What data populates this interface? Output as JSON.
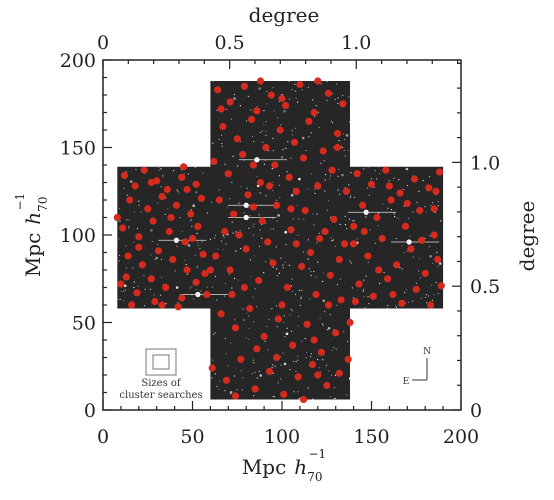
{
  "chart_data": {
    "type": "scatter",
    "title": "",
    "xlabel_main": "Mpc",
    "xlabel_h": "h",
    "xlabel_sub": "70",
    "xlabel_sup": "−1",
    "ylabel_main": "Mpc",
    "ylabel_h": "h",
    "ylabel_sub": "70",
    "ylabel_sup": "−1",
    "top_axis_label": "degree",
    "right_axis_label": "degree",
    "xlim": [
      0,
      200
    ],
    "ylim": [
      0,
      200
    ],
    "x_ticks": [
      "0",
      "50",
      "100",
      "150",
      "200"
    ],
    "y_ticks": [
      "0",
      "50",
      "100",
      "150",
      "200"
    ],
    "top_ticks": [
      "0",
      "0.5",
      "1.0"
    ],
    "right_ticks": [
      "0",
      "0.5",
      "1.0"
    ],
    "degree_to_mpc": 141.5,
    "field_footprint": [
      {
        "x": [
          60,
          138
        ],
        "y": [
          6,
          188
        ]
      },
      {
        "x": [
          8,
          190
        ],
        "y": [
          58,
          139
        ]
      }
    ],
    "legend_box_caption_line1": "Sizes of",
    "legend_box_caption_line2": "cluster searches",
    "compass_north": "N",
    "compass_east": "E",
    "series": [
      {
        "marker_color": "#d42b1e",
        "points": [
          [
            12,
            134
          ],
          [
            18,
            128
          ],
          [
            23,
            137
          ],
          [
            30,
            131
          ],
          [
            36,
            126
          ],
          [
            44,
            133
          ],
          [
            52,
            129
          ],
          [
            15,
            120
          ],
          [
            25,
            115
          ],
          [
            33,
            122
          ],
          [
            41,
            117
          ],
          [
            49,
            112
          ],
          [
            55,
            121
          ],
          [
            11,
            104
          ],
          [
            20,
            99
          ],
          [
            28,
            108
          ],
          [
            37,
            102
          ],
          [
            46,
            96
          ],
          [
            53,
            105
          ],
          [
            14,
            88
          ],
          [
            22,
            83
          ],
          [
            31,
            91
          ],
          [
            39,
            86
          ],
          [
            47,
            80
          ],
          [
            56,
            89
          ],
          [
            10,
            72
          ],
          [
            19,
            67
          ],
          [
            27,
            75
          ],
          [
            35,
            70
          ],
          [
            44,
            64
          ],
          [
            52,
            73
          ],
          [
            16,
            60
          ],
          [
            29,
            62
          ],
          [
            42,
            59
          ],
          [
            58,
            66
          ],
          [
            64,
            183
          ],
          [
            71,
            176
          ],
          [
            79,
            185
          ],
          [
            86,
            171
          ],
          [
            94,
            180
          ],
          [
            102,
            174
          ],
          [
            110,
            186
          ],
          [
            118,
            170
          ],
          [
            126,
            181
          ],
          [
            134,
            175
          ],
          [
            67,
            162
          ],
          [
            75,
            155
          ],
          [
            83,
            166
          ],
          [
            91,
            150
          ],
          [
            99,
            160
          ],
          [
            107,
            153
          ],
          [
            115,
            165
          ],
          [
            123,
            148
          ],
          [
            131,
            158
          ],
          [
            62,
            142
          ],
          [
            70,
            135
          ],
          [
            78,
            146
          ],
          [
            88,
            130
          ],
          [
            96,
            140
          ],
          [
            104,
            133
          ],
          [
            112,
            144
          ],
          [
            120,
            128
          ],
          [
            128,
            137
          ],
          [
            136,
            125
          ],
          [
            65,
            120
          ],
          [
            73,
            112
          ],
          [
            81,
            123
          ],
          [
            89,
            108
          ],
          [
            97,
            117
          ],
          [
            105,
            103
          ],
          [
            113,
            114
          ],
          [
            121,
            98
          ],
          [
            129,
            109
          ],
          [
            135,
            95
          ],
          [
            63,
            88
          ],
          [
            71,
            80
          ],
          [
            80,
            92
          ],
          [
            87,
            74
          ],
          [
            95,
            84
          ],
          [
            103,
            70
          ],
          [
            111,
            82
          ],
          [
            119,
            66
          ],
          [
            127,
            77
          ],
          [
            133,
            63
          ],
          [
            66,
            55
          ],
          [
            74,
            47
          ],
          [
            82,
            58
          ],
          [
            90,
            42
          ],
          [
            98,
            52
          ],
          [
            106,
            37
          ],
          [
            114,
            49
          ],
          [
            122,
            33
          ],
          [
            130,
            44
          ],
          [
            137,
            29
          ],
          [
            61,
            24
          ],
          [
            69,
            17
          ],
          [
            77,
            29
          ],
          [
            85,
            12
          ],
          [
            93,
            22
          ],
          [
            101,
            9
          ],
          [
            109,
            19
          ],
          [
            117,
            26
          ],
          [
            125,
            14
          ],
          [
            132,
            21
          ],
          [
            142,
            135
          ],
          [
            150,
            129
          ],
          [
            158,
            137
          ],
          [
            166,
            124
          ],
          [
            174,
            132
          ],
          [
            182,
            127
          ],
          [
            188,
            136
          ],
          [
            145,
            117
          ],
          [
            153,
            110
          ],
          [
            161,
            120
          ],
          [
            169,
            105
          ],
          [
            177,
            114
          ],
          [
            185,
            100
          ],
          [
            140,
            95
          ],
          [
            148,
            88
          ],
          [
            156,
            98
          ],
          [
            164,
            83
          ],
          [
            172,
            92
          ],
          [
            180,
            78
          ],
          [
            187,
            86
          ],
          [
            143,
            72
          ],
          [
            151,
            65
          ],
          [
            159,
            75
          ],
          [
            167,
            61
          ],
          [
            175,
            69
          ],
          [
            183,
            60
          ],
          [
            189,
            71
          ],
          [
            146,
            102
          ],
          [
            160,
            128
          ],
          [
            178,
            97
          ],
          [
            154,
            80
          ],
          [
            170,
            118
          ],
          [
            185,
            115
          ],
          [
            141,
            62
          ],
          [
            162,
            66
          ],
          [
            186,
            125
          ],
          [
            20,
            93
          ],
          [
            38,
            110
          ],
          [
            50,
            98
          ],
          [
            27,
            130
          ],
          [
            45,
            139
          ],
          [
            8,
            110
          ],
          [
            57,
            78
          ],
          [
            33,
            60
          ],
          [
            13,
            76
          ],
          [
            47,
            126
          ],
          [
            76,
            100
          ],
          [
            92,
            96
          ],
          [
            108,
            125
          ],
          [
            124,
            102
          ],
          [
            84,
            140
          ],
          [
            116,
            90
          ],
          [
            100,
            60
          ],
          [
            72,
            66
          ],
          [
            132,
            86
          ],
          [
            86,
            35
          ],
          [
            118,
            40
          ],
          [
            68,
            102
          ],
          [
            100,
            178
          ],
          [
            140,
            105
          ],
          [
            60,
            80
          ],
          [
            88,
            188
          ],
          [
            120,
            188
          ],
          [
            112,
            6
          ],
          [
            74,
            8
          ],
          [
            138,
            50
          ],
          [
            105,
            115
          ],
          [
            93,
            128
          ],
          [
            79,
            70
          ],
          [
            126,
            60
          ],
          [
            97,
            30
          ],
          [
            66,
            172
          ],
          [
            131,
            150
          ],
          [
            108,
            95
          ],
          [
            84,
            116
          ],
          [
            120,
            20
          ]
        ]
      }
    ]
  }
}
